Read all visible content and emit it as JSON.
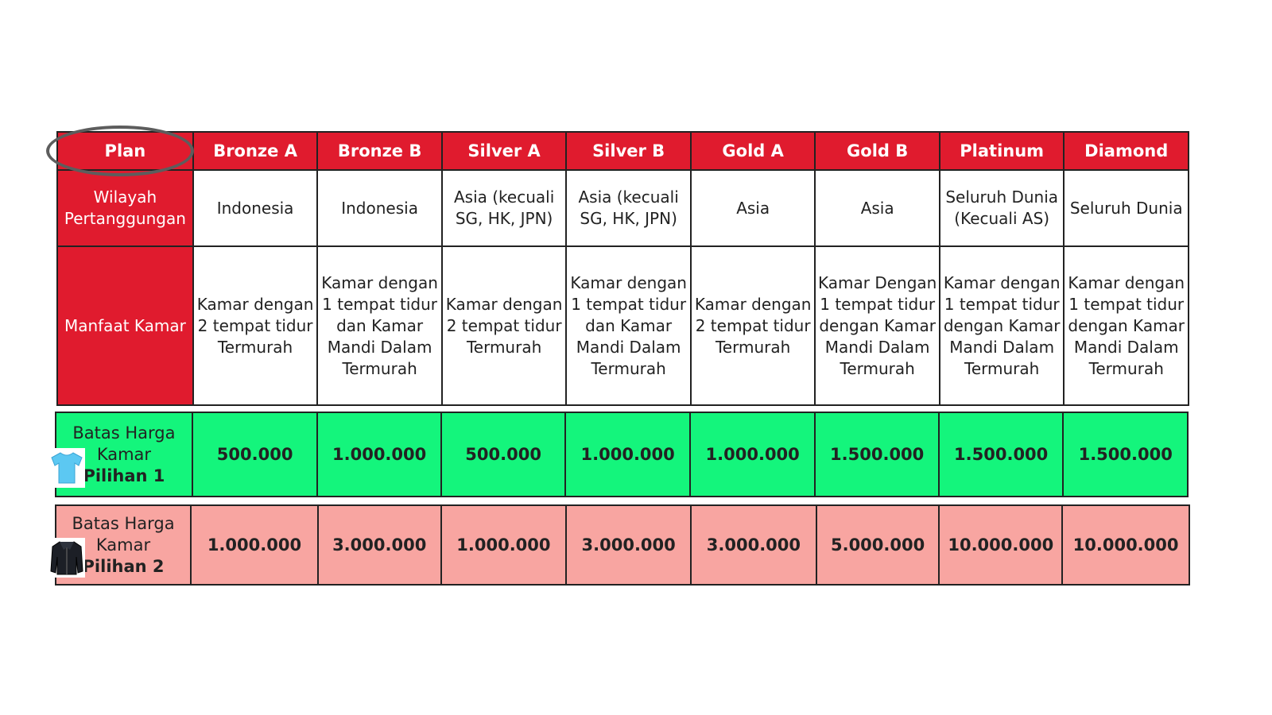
{
  "header": {
    "plan_label": "Plan",
    "plans": [
      "Bronze A",
      "Bronze B",
      "Silver A",
      "Silver B",
      "Gold A",
      "Gold B",
      "Platinum",
      "Diamond"
    ]
  },
  "coverage": {
    "label": "Wilayah Pertanggungan",
    "values": [
      "Indonesia",
      "Indonesia",
      "Asia (kecuali SG, HK, JPN)",
      "Asia (kecuali SG, HK, JPN)",
      "Asia",
      "Asia",
      "Seluruh Dunia (Kecuali AS)",
      "Seluruh Dunia"
    ]
  },
  "room_benefit": {
    "label": "Manfaat Kamar",
    "values": [
      "Kamar dengan 2 tempat tidur Termurah",
      "Kamar dengan 1 tempat tidur dan Kamar Mandi Dalam Termurah",
      "Kamar dengan 2 tempat tidur Termurah",
      "Kamar dengan 1 tempat tidur dan Kamar Mandi Dalam Termurah",
      "Kamar dengan 2 tempat tidur Termurah",
      "Kamar Dengan 1 tempat tidur dengan Kamar Mandi Dalam Termurah",
      "Kamar dengan 1 tempat tidur dengan Kamar Mandi Dalam Termurah",
      "Kamar dengan 1 tempat tidur dengan Kamar Mandi Dalam Termurah"
    ]
  },
  "option1": {
    "label_line1": "Batas Harga",
    "label_line2": "Kamar",
    "label_line3": "Pilihan 1",
    "icon": "t-shirt-icon",
    "values": [
      "500.000",
      "1.000.000",
      "500.000",
      "1.000.000",
      "1.000.000",
      "1.500.000",
      "1.500.000",
      "1.500.000"
    ]
  },
  "option2": {
    "label_line1": "Batas Harga",
    "label_line2": "Kamar",
    "label_line3": "Pilihan 2",
    "icon": "jacket-icon",
    "values": [
      "1.000.000",
      "3.000.000",
      "1.000.000",
      "3.000.000",
      "3.000.000",
      "5.000.000",
      "10.000.000",
      "10.000.000"
    ]
  },
  "colors": {
    "header_red": "#e01b2e",
    "option1_green": "#14f57c",
    "option2_pink": "#f8a5a1",
    "highlight_circle": "#5d5d5d"
  }
}
